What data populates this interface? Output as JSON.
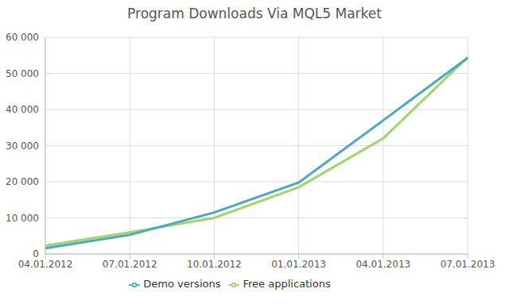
{
  "chart_data": {
    "type": "line",
    "title": "Program Downloads Via MQL5 Market",
    "categories": [
      "04.01.2012",
      "07.01.2012",
      "10.01.2012",
      "01.01.2013",
      "04.01.2013",
      "07.01.2013"
    ],
    "series": [
      {
        "name": "Free applications",
        "color": "#9ed66c",
        "values": [
          2300,
          6000,
          10000,
          18500,
          32000,
          54500
        ]
      },
      {
        "name": "Demo versions",
        "color": "#4aa9c1",
        "values": [
          1600,
          5300,
          11500,
          19800,
          37000,
          54300
        ]
      }
    ],
    "ylim": [
      0,
      60000
    ],
    "yticks": [
      {
        "value": 0,
        "label": "0"
      },
      {
        "value": 10000,
        "label": "10 000"
      },
      {
        "value": 20000,
        "label": "20 000"
      },
      {
        "value": 30000,
        "label": "30 000"
      },
      {
        "value": 40000,
        "label": "40 000"
      },
      {
        "value": 50000,
        "label": "50 000"
      },
      {
        "value": 60000,
        "label": "60 000"
      }
    ],
    "grid": true,
    "legend": "bottom",
    "marker": "none"
  }
}
